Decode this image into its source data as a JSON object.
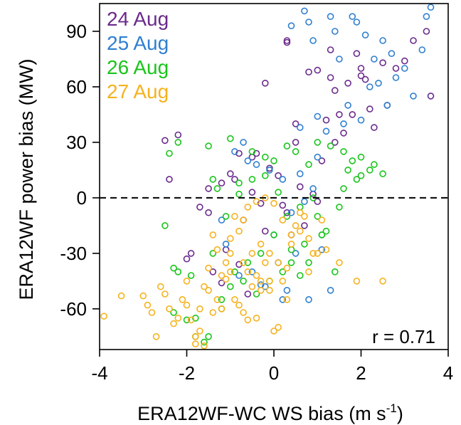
{
  "chart_data": {
    "type": "scatter",
    "xlabel": "ERA12WF-WC WS bias (m s",
    "xlabel_superscript": "-1",
    "xlabel_suffix": ")",
    "ylabel": "ERA12WF power bias (MW)",
    "xlim": [
      -4,
      4
    ],
    "ylim": [
      -82,
      105
    ],
    "x_ticks": [
      -4,
      -2,
      0,
      2,
      4
    ],
    "x_tick_labels": [
      "-4",
      "-2",
      "0",
      "2",
      "4"
    ],
    "y_ticks": [
      -60,
      -30,
      0,
      30,
      60,
      90
    ],
    "y_tick_labels": [
      "-60",
      "-30",
      "0",
      "30",
      "60",
      "90"
    ],
    "reference_line": {
      "y": 0,
      "style": "dashed"
    },
    "annotation": "r = 0.71",
    "legend_position": "top-left",
    "series": [
      {
        "name": "24 Aug",
        "color": "#6a2a8c",
        "x": [
          -2.5,
          -2.2,
          -1.0,
          0.3,
          0.3,
          1.0,
          -0.2,
          1.3,
          -2.4,
          -1.5,
          1.4,
          0.8,
          1.7,
          1.3,
          1.9,
          2.0,
          2.0,
          2.1,
          2.5,
          2.8,
          3.0,
          3.2,
          3.5,
          3.6,
          2.6,
          1.5,
          1.2,
          0.5,
          -0.5,
          -0.8,
          -1.7,
          -1.5,
          -1.2,
          -0.9,
          -0.5,
          -0.3,
          -0.7,
          -0.2,
          0.3,
          0.6,
          0.9,
          -0.1,
          0.5,
          -1.1,
          -0.8,
          1.1,
          1.8,
          2.3,
          0.2,
          -1.9,
          -1.2,
          -0.6,
          0.4,
          1.4,
          1.6,
          2.2,
          -2.0,
          -0.4,
          0.1,
          1.0,
          0.7,
          -1.4
        ],
        "y": [
          31,
          34,
          13,
          85,
          84,
          69,
          62,
          65,
          10,
          -8,
          58,
          68,
          62,
          80,
          78,
          66,
          70,
          64,
          73,
          70,
          74,
          85,
          90,
          55,
          50,
          45,
          42,
          40,
          22,
          24,
          -5,
          5,
          8,
          10,
          3,
          -3,
          -12,
          -18,
          -8,
          6,
          2,
          16,
          30,
          -28,
          -36,
          20,
          45,
          38,
          -4,
          -30,
          -46,
          -52,
          -20,
          30,
          35,
          48,
          -33,
          24,
          12,
          -2,
          -15,
          -40
        ]
      },
      {
        "name": "25 Aug",
        "color": "#2f7fd0",
        "x": [
          0.7,
          0.8,
          1.3,
          1.4,
          1.8,
          1.9,
          2.1,
          2.3,
          2.5,
          2.7,
          2.8,
          3.0,
          3.2,
          3.4,
          3.5,
          3.6,
          0.4,
          0.9,
          1.5,
          2.2,
          2.4,
          2.6,
          1.0,
          1.2,
          0.6,
          0.2,
          -0.1,
          -0.4,
          -0.6,
          -0.9,
          -1.2,
          -1.1,
          -0.8,
          -0.3,
          0.1,
          0.5,
          1.1,
          0.0,
          0.3,
          0.2,
          -0.2,
          -0.5,
          0.4,
          0.7,
          0.9,
          1.6,
          2.0,
          1.7,
          0.8,
          1.3,
          0.6,
          1.0,
          -0.7
        ],
        "y": [
          101,
          95,
          98,
          90,
          98,
          95,
          88,
          75,
          85,
          78,
          65,
          70,
          55,
          80,
          98,
          103,
          93,
          85,
          75,
          60,
          62,
          50,
          44,
          36,
          38,
          10,
          15,
          18,
          20,
          25,
          -12,
          -25,
          -42,
          -47,
          -35,
          -30,
          -28,
          -20,
          -50,
          -55,
          -48,
          -40,
          -8,
          -2,
          5,
          40,
          42,
          50,
          -55,
          -50,
          13,
          22,
          30
        ]
      },
      {
        "name": "26 Aug",
        "color": "#18c51a",
        "x": [
          -2.4,
          -2.2,
          -1.5,
          -1.4,
          -1.3,
          -1.0,
          -0.8,
          -0.5,
          -0.2,
          0.0,
          0.3,
          0.5,
          0.8,
          1.0,
          1.3,
          1.6,
          1.8,
          2.0,
          2.2,
          2.5,
          -2.3,
          -2.0,
          -1.8,
          -1.5,
          -1.2,
          -1.0,
          -0.7,
          -0.4,
          -0.1,
          0.2,
          0.4,
          0.7,
          1.0,
          1.2,
          1.5,
          -2.5,
          -2.2,
          -1.8,
          -1.6,
          -1.2,
          -0.9,
          -0.6,
          -0.3,
          0.0,
          0.3,
          0.6,
          0.9,
          -2.3,
          -1.9,
          -1.4,
          -1.1,
          -0.8,
          -0.5,
          -0.2,
          0.1,
          0.4,
          0.8,
          1.1,
          1.4,
          1.7,
          2.0,
          2.3,
          1.9,
          1.6,
          1.1,
          0.6
        ],
        "y": [
          24,
          30,
          28,
          10,
          5,
          32,
          8,
          25,
          22,
          20,
          28,
          25,
          18,
          30,
          28,
          25,
          20,
          12,
          15,
          13,
          -62,
          -66,
          -75,
          -75,
          -55,
          -48,
          -45,
          -52,
          -45,
          -40,
          -35,
          -25,
          -10,
          -18,
          -5,
          -15,
          -40,
          -65,
          -78,
          -60,
          -40,
          -35,
          -30,
          -20,
          -10,
          -5,
          0,
          -38,
          -42,
          -30,
          -10,
          2,
          10,
          12,
          3,
          -28,
          -35,
          -20,
          -40,
          15,
          22,
          18,
          10,
          5,
          -20,
          -42
        ]
      },
      {
        "name": "27 Aug",
        "color": "#f5b21e",
        "x": [
          -3.9,
          -3.5,
          -3.0,
          -2.9,
          -2.8,
          -2.6,
          -2.5,
          -2.4,
          -2.2,
          -2.0,
          -1.9,
          -1.8,
          -1.7,
          -1.6,
          -1.5,
          -1.4,
          -1.3,
          -1.2,
          -1.1,
          -1.0,
          -0.9,
          -0.8,
          -0.7,
          -0.6,
          -0.5,
          -0.4,
          -0.3,
          -0.2,
          -0.1,
          0.0,
          0.1,
          0.2,
          0.3,
          0.4,
          0.5,
          0.6,
          0.7,
          0.8,
          0.9,
          1.0,
          1.1,
          1.2,
          1.5,
          1.9,
          2.5,
          -2.7,
          -2.1,
          -1.7,
          -1.5,
          -1.3,
          -1.0,
          -0.8,
          -0.6,
          -0.4,
          -0.2,
          0.0,
          0.2,
          0.4,
          0.6,
          0.8,
          -2.0,
          -1.6,
          -1.2,
          -0.9,
          -0.7,
          -0.5,
          -0.3,
          -0.1,
          0.1,
          0.3,
          -1.4,
          -1.0,
          -0.6,
          -0.3,
          -0.1,
          -2.3,
          -1.8,
          -1.1,
          -0.4,
          -0.7
        ],
        "y": [
          -64,
          -53,
          -53,
          -58,
          -62,
          -48,
          -52,
          -60,
          -65,
          -58,
          -66,
          -79,
          -72,
          -80,
          -50,
          -62,
          -55,
          -60,
          -35,
          -40,
          -55,
          -58,
          -62,
          -66,
          -48,
          -42,
          -45,
          -35,
          -30,
          -72,
          -70,
          -45,
          -38,
          -25,
          -15,
          -18,
          -10,
          -22,
          -30,
          -30,
          -12,
          -28,
          -35,
          -45,
          -45,
          -75,
          -55,
          -60,
          -38,
          -28,
          -22,
          -18,
          -5,
          -2,
          0,
          -3,
          -12,
          -20,
          -8,
          -40,
          -45,
          -48,
          -42,
          -10,
          -12,
          -30,
          -50,
          -45,
          -35,
          -55,
          -20,
          -30,
          -40,
          -25,
          -50,
          -68,
          -75,
          -44,
          -65,
          -35
        ]
      }
    ]
  }
}
